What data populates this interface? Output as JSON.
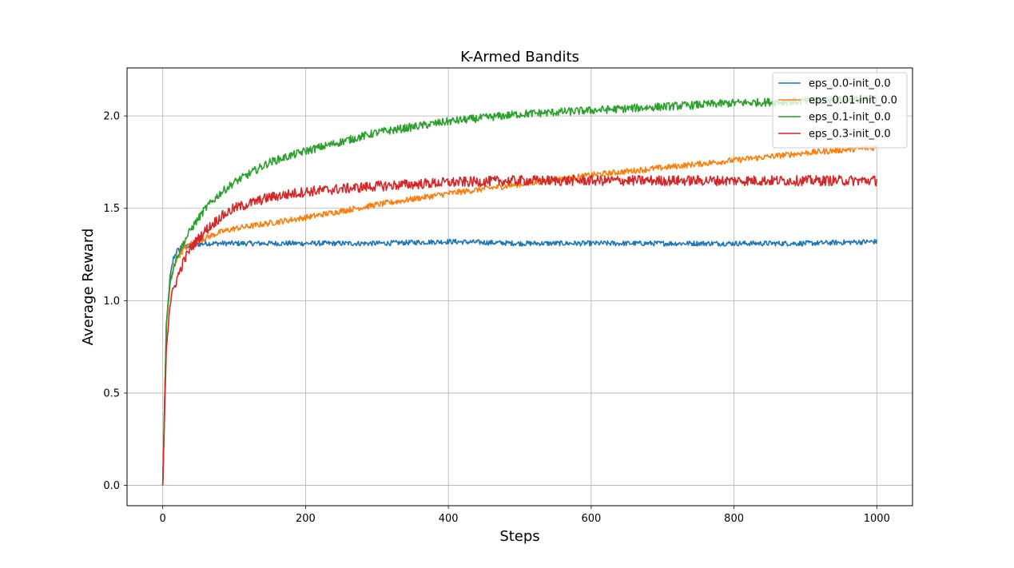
{
  "chart_data": {
    "type": "line",
    "title": "K-Armed Bandits",
    "xlabel": "Steps",
    "ylabel": "Average Reward",
    "xlim": [
      -50,
      1050
    ],
    "ylim": [
      -0.11,
      2.26
    ],
    "xticks": [
      0,
      200,
      400,
      600,
      800,
      1000
    ],
    "xtick_labels": [
      "0",
      "200",
      "400",
      "600",
      "800",
      "1000"
    ],
    "yticks": [
      0.0,
      0.5,
      1.0,
      1.5,
      2.0
    ],
    "ytick_labels": [
      "0.0",
      "0.5",
      "1.0",
      "1.5",
      "2.0"
    ],
    "grid": true,
    "legend_position": "top-right",
    "series": [
      {
        "name": "eps_0.0-init_0.0",
        "color": "#1f77b4",
        "x": [
          0,
          5,
          10,
          15,
          20,
          30,
          40,
          60,
          80,
          100,
          150,
          200,
          300,
          400,
          500,
          600,
          700,
          800,
          900,
          1000
        ],
        "y": [
          0.0,
          0.85,
          1.12,
          1.23,
          1.27,
          1.29,
          1.3,
          1.31,
          1.31,
          1.31,
          1.31,
          1.31,
          1.31,
          1.32,
          1.31,
          1.31,
          1.31,
          1.31,
          1.31,
          1.32
        ]
      },
      {
        "name": "eps_0.01-init_0.0",
        "color": "#ff7f0e",
        "x": [
          0,
          5,
          10,
          15,
          20,
          30,
          40,
          60,
          80,
          100,
          150,
          200,
          300,
          400,
          500,
          600,
          700,
          800,
          900,
          1000
        ],
        "y": [
          0.0,
          0.85,
          1.08,
          1.18,
          1.23,
          1.28,
          1.31,
          1.34,
          1.37,
          1.39,
          1.42,
          1.45,
          1.52,
          1.58,
          1.63,
          1.68,
          1.72,
          1.76,
          1.8,
          1.83
        ]
      },
      {
        "name": "eps_0.1-init_0.0",
        "color": "#2ca02c",
        "x": [
          0,
          5,
          10,
          15,
          20,
          30,
          40,
          60,
          80,
          100,
          150,
          200,
          300,
          400,
          500,
          600,
          700,
          800,
          900,
          1000
        ],
        "y": [
          0.0,
          0.88,
          1.1,
          1.18,
          1.24,
          1.32,
          1.39,
          1.5,
          1.58,
          1.64,
          1.75,
          1.81,
          1.91,
          1.97,
          2.01,
          2.03,
          2.05,
          2.07,
          2.08,
          2.09
        ]
      },
      {
        "name": "eps_0.3-init_0.0",
        "color": "#d62728",
        "x": [
          0,
          5,
          10,
          15,
          20,
          30,
          40,
          60,
          80,
          100,
          150,
          200,
          300,
          400,
          500,
          600,
          700,
          800,
          900,
          1000
        ],
        "y": [
          0.0,
          0.75,
          0.98,
          1.06,
          1.12,
          1.22,
          1.29,
          1.38,
          1.45,
          1.5,
          1.56,
          1.59,
          1.62,
          1.64,
          1.65,
          1.65,
          1.65,
          1.65,
          1.65,
          1.65
        ]
      }
    ]
  }
}
